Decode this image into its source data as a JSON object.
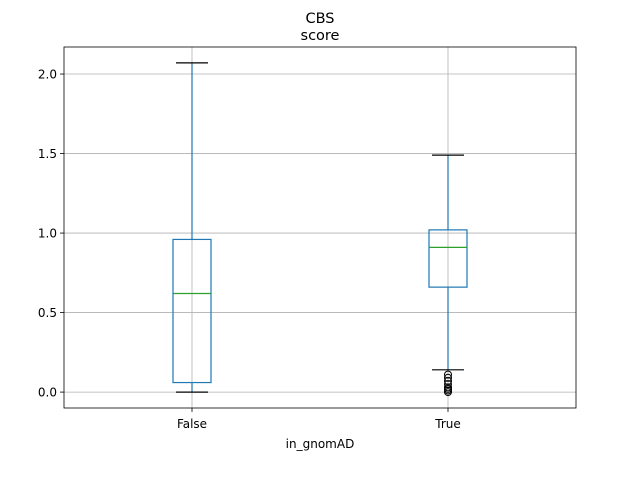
{
  "chart_data": {
    "type": "boxplot",
    "title": "CBS",
    "subtitle": "score",
    "xlabel": "in_gnomAD",
    "ylabel": "",
    "categories": [
      "False",
      "True"
    ],
    "ylim": [
      -0.1,
      2.17
    ],
    "yticks": [
      0.0,
      0.5,
      1.0,
      1.5,
      2.0
    ],
    "ytick_labels": [
      "0.0",
      "0.5",
      "1.0",
      "1.5",
      "2.0"
    ],
    "grid": true,
    "boxes": [
      {
        "category": "False",
        "whisker_low": 0.0,
        "q1": 0.06,
        "median": 0.62,
        "q3": 0.96,
        "whisker_high": 2.07,
        "outliers": []
      },
      {
        "category": "True",
        "whisker_low": 0.14,
        "q1": 0.66,
        "median": 0.91,
        "q3": 1.02,
        "whisker_high": 1.49,
        "outliers": [
          0.0,
          0.01,
          0.02,
          0.03,
          0.05,
          0.07,
          0.09,
          0.11
        ]
      }
    ]
  },
  "colors": {
    "box": "#1f77b4",
    "median": "#2ca02c",
    "grid": "#b0b0b0",
    "axis": "#000000",
    "whisker_cap": "#000000",
    "outlier": "#000000"
  }
}
